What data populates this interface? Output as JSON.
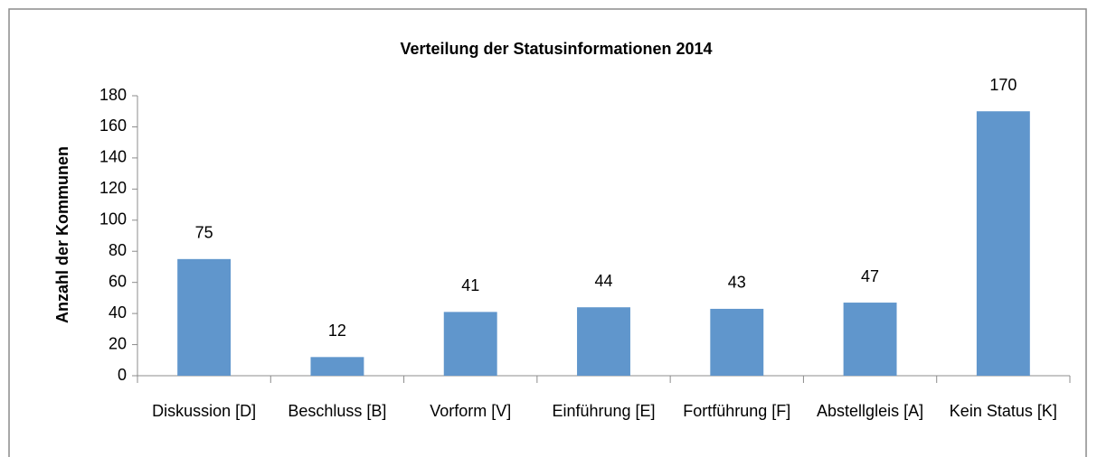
{
  "chart_data": {
    "type": "bar",
    "title": "Verteilung der Statusinformationen 2014",
    "y_label": "Anzahl der Kommunen",
    "categories": [
      "Diskussion [D]",
      "Beschluss [B]",
      "Vorform [V]",
      "Einführung [E]",
      "Fortführung [F]",
      "Abstellgleis [A]",
      "Kein Status [K]"
    ],
    "values": [
      75,
      12,
      41,
      44,
      43,
      47,
      170
    ],
    "color": "#6096cc",
    "ylim": [
      0,
      180
    ],
    "yticks": [
      0,
      20,
      40,
      60,
      80,
      100,
      120,
      140,
      160,
      180
    ],
    "grid": false
  }
}
